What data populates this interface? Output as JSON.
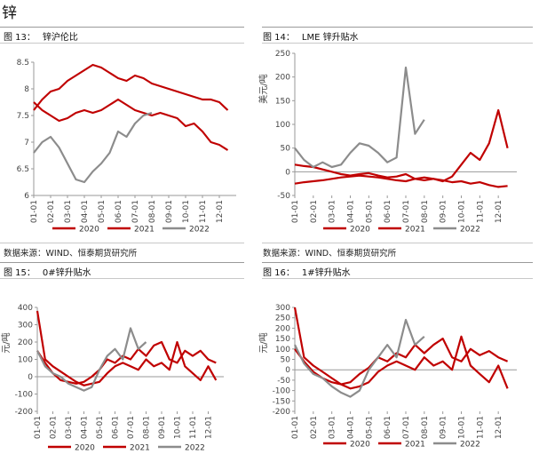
{
  "page": {
    "title": "锌"
  },
  "panels": [
    {
      "id": "fig13",
      "label_no": "图 13：",
      "label_title": "锌沪伦比",
      "source": ""
    },
    {
      "id": "fig14",
      "label_no": "图 14：",
      "label_title": "LME 锌升贴水",
      "source": "数据来源：WIND、恒泰期货研究所"
    },
    {
      "id": "fig15",
      "label_no": "图 15：",
      "label_title": "0#锌升贴水",
      "source": ""
    },
    {
      "id": "fig16",
      "label_no": "图 16：",
      "label_title": "1#锌升贴水",
      "source": ""
    }
  ],
  "source_left": "数据来源：WIND、恒泰期货研究所",
  "source_right": "数据来源：WIND、恒泰期货研究所",
  "colors": {
    "s2020": "#c00000",
    "s2021": "#c00000",
    "s2022": "#8c8c8c",
    "axis": "#999999"
  },
  "chart_data": [
    {
      "type": "line",
      "title": "锌沪伦比",
      "categories": [
        "01-01",
        "02-01",
        "03-01",
        "04-01",
        "05-01",
        "06-01",
        "07-01",
        "08-01",
        "09-01",
        "10-01",
        "11-01",
        "12-01"
      ],
      "ylim": [
        6,
        8.5
      ],
      "yticks": [
        "6",
        "6.5",
        "7",
        "7.5",
        "8",
        "8.5"
      ],
      "ylabel": "",
      "series": [
        {
          "name": "2020",
          "color": "#c00000",
          "width": 2.2,
          "x": [
            0,
            0.5,
            1,
            1.5,
            2,
            2.5,
            3,
            3.5,
            4,
            4.5,
            5,
            5.5,
            6,
            6.5,
            7,
            7.5,
            8,
            8.5,
            9,
            9.5,
            10,
            10.5,
            11,
            11.5
          ],
          "values": [
            7.75,
            7.6,
            7.5,
            7.4,
            7.45,
            7.55,
            7.6,
            7.55,
            7.6,
            7.7,
            7.8,
            7.7,
            7.6,
            7.55,
            7.5,
            7.55,
            7.5,
            7.45,
            7.3,
            7.35,
            7.2,
            7.0,
            6.95,
            6.85
          ]
        },
        {
          "name": "2021",
          "color": "#c00000",
          "width": 2.2,
          "x": [
            0,
            0.5,
            1,
            1.5,
            2,
            2.5,
            3,
            3.5,
            4,
            4.5,
            5,
            5.5,
            6,
            6.5,
            7,
            7.5,
            8,
            8.5,
            9,
            9.5,
            10,
            10.5,
            11,
            11.5
          ],
          "values": [
            7.6,
            7.8,
            7.95,
            8.0,
            8.15,
            8.25,
            8.35,
            8.45,
            8.4,
            8.3,
            8.2,
            8.15,
            8.25,
            8.2,
            8.1,
            8.05,
            8.0,
            7.95,
            7.9,
            7.85,
            7.8,
            7.8,
            7.75,
            7.6
          ]
        },
        {
          "name": "2022",
          "color": "#8c8c8c",
          "width": 2.2,
          "x": [
            0,
            0.5,
            1,
            1.5,
            2,
            2.5,
            3,
            3.5,
            4,
            4.5,
            5,
            5.5,
            6,
            6.5,
            7
          ],
          "values": [
            6.8,
            7.0,
            7.1,
            6.9,
            6.6,
            6.3,
            6.25,
            6.45,
            6.6,
            6.8,
            7.2,
            7.1,
            7.35,
            7.5,
            7.55
          ]
        }
      ]
    },
    {
      "type": "line",
      "title": "LME 锌升贴水",
      "categories": [
        "01-01",
        "02-01",
        "03-01",
        "04-01",
        "05-01",
        "06-01",
        "07-01",
        "08-01",
        "09-01",
        "10-01",
        "11-01",
        "12-01"
      ],
      "ylim": [
        -50,
        250
      ],
      "yticks": [
        "-50",
        "0",
        "50",
        "100",
        "150",
        "200",
        "250"
      ],
      "ylabel": "美元/吨",
      "series": [
        {
          "name": "2020",
          "color": "#c00000",
          "width": 2.2,
          "x": [
            0,
            0.5,
            1,
            1.5,
            2,
            2.5,
            3,
            3.5,
            4,
            4.5,
            5,
            5.5,
            6,
            6.5,
            7,
            7.5,
            8,
            8.5,
            9,
            9.5,
            10,
            10.5,
            11,
            11.5
          ],
          "values": [
            -25,
            -22,
            -20,
            -18,
            -15,
            -12,
            -10,
            -8,
            -10,
            -12,
            -15,
            -18,
            -20,
            -15,
            -12,
            -15,
            -18,
            -22,
            -20,
            -25,
            -22,
            -28,
            -32,
            -30
          ]
        },
        {
          "name": "2021",
          "color": "#c00000",
          "width": 2.2,
          "x": [
            0,
            0.5,
            1,
            1.5,
            2,
            2.5,
            3,
            3.5,
            4,
            4.5,
            5,
            5.5,
            6,
            6.5,
            7,
            7.5,
            8,
            8.5,
            9,
            9.5,
            10,
            10.5,
            11,
            11.5
          ],
          "values": [
            15,
            12,
            10,
            5,
            0,
            -5,
            -8,
            -5,
            -3,
            -8,
            -12,
            -10,
            -5,
            -15,
            -18,
            -15,
            -20,
            -10,
            15,
            40,
            25,
            60,
            130,
            50
          ]
        },
        {
          "name": "2022",
          "color": "#8c8c8c",
          "width": 2.2,
          "x": [
            0,
            0.5,
            1,
            1.5,
            2,
            2.5,
            3,
            3.5,
            4,
            4.5,
            5,
            5.5,
            6,
            6.5,
            7
          ],
          "values": [
            50,
            25,
            10,
            20,
            10,
            15,
            40,
            60,
            55,
            40,
            20,
            30,
            220,
            80,
            110
          ]
        }
      ]
    },
    {
      "type": "line",
      "title": "0#锌升贴水",
      "categories": [
        "01-01",
        "02-01",
        "03-01",
        "04-01",
        "05-01",
        "06-01",
        "07-01",
        "08-01",
        "09-01",
        "10-01",
        "11-01",
        "12-01"
      ],
      "ylim": [
        -200,
        400
      ],
      "yticks": [
        "-200",
        "-100",
        "0",
        "100",
        "200",
        "300",
        "400"
      ],
      "ylabel": "元/吨",
      "series": [
        {
          "name": "2020",
          "color": "#c00000",
          "width": 2.2,
          "x": [
            0,
            0.5,
            1,
            1.5,
            2,
            2.5,
            3,
            3.5,
            4,
            4.5,
            5,
            5.5,
            6,
            6.5,
            7,
            7.5,
            8,
            8.5,
            9,
            9.5,
            10,
            10.5,
            11,
            11.5
          ],
          "values": [
            150,
            80,
            20,
            -20,
            -30,
            -40,
            -30,
            0,
            40,
            100,
            80,
            120,
            100,
            160,
            120,
            180,
            200,
            100,
            80,
            150,
            120,
            150,
            100,
            80
          ]
        },
        {
          "name": "2021",
          "color": "#c00000",
          "width": 2.2,
          "x": [
            0,
            0.5,
            1,
            1.5,
            2,
            2.5,
            3,
            3.5,
            4,
            4.5,
            5,
            5.5,
            6,
            6.5,
            7,
            7.5,
            8,
            8.5,
            9,
            9.5,
            10,
            10.5,
            11,
            11.5
          ],
          "values": [
            380,
            100,
            60,
            30,
            0,
            -30,
            -50,
            -40,
            -30,
            20,
            60,
            80,
            60,
            40,
            100,
            60,
            80,
            40,
            200,
            60,
            20,
            -20,
            60,
            -20
          ]
        },
        {
          "name": "2022",
          "color": "#8c8c8c",
          "width": 2.2,
          "x": [
            0,
            0.5,
            1,
            1.5,
            2,
            2.5,
            3,
            3.5,
            4,
            4.5,
            5,
            5.5,
            6,
            6.5,
            7
          ],
          "values": [
            150,
            60,
            20,
            0,
            -40,
            -60,
            -80,
            -60,
            40,
            120,
            160,
            100,
            280,
            160,
            200
          ]
        }
      ]
    },
    {
      "type": "line",
      "title": "1#锌升贴水",
      "categories": [
        "01-01",
        "02-01",
        "03-01",
        "04-01",
        "05-01",
        "06-01",
        "07-01",
        "08-01",
        "09-01",
        "10-01",
        "11-01",
        "12-01"
      ],
      "ylim": [
        -200,
        300
      ],
      "yticks": [
        "-200",
        "-150",
        "-100",
        "-50",
        "0",
        "50",
        "100",
        "150",
        "200",
        "250",
        "300"
      ],
      "ylabel": "元/吨",
      "series": [
        {
          "name": "2020",
          "color": "#c00000",
          "width": 2.2,
          "x": [
            0,
            0.5,
            1,
            1.5,
            2,
            2.5,
            3,
            3.5,
            4,
            4.5,
            5,
            5.5,
            6,
            6.5,
            7,
            7.5,
            8,
            8.5,
            9,
            9.5,
            10,
            10.5,
            11,
            11.5
          ],
          "values": [
            100,
            40,
            -10,
            -40,
            -60,
            -70,
            -60,
            -20,
            10,
            60,
            40,
            80,
            60,
            120,
            80,
            120,
            150,
            60,
            40,
            100,
            70,
            90,
            60,
            40
          ]
        },
        {
          "name": "2021",
          "color": "#c00000",
          "width": 2.2,
          "x": [
            0,
            0.5,
            1,
            1.5,
            2,
            2.5,
            3,
            3.5,
            4,
            4.5,
            5,
            5.5,
            6,
            6.5,
            7,
            7.5,
            8,
            8.5,
            9,
            9.5,
            10,
            10.5,
            11,
            11.5
          ],
          "values": [
            300,
            60,
            20,
            -10,
            -40,
            -70,
            -90,
            -80,
            -60,
            -10,
            20,
            40,
            20,
            0,
            60,
            20,
            40,
            0,
            160,
            20,
            -20,
            -60,
            20,
            -90
          ]
        },
        {
          "name": "2022",
          "color": "#8c8c8c",
          "width": 2.2,
          "x": [
            0,
            0.5,
            1,
            1.5,
            2,
            2.5,
            3,
            3.5,
            4,
            4.5,
            5,
            5.5,
            6,
            6.5,
            7
          ],
          "values": [
            120,
            30,
            -20,
            -40,
            -80,
            -110,
            -130,
            -100,
            0,
            60,
            120,
            60,
            240,
            120,
            160
          ]
        }
      ]
    }
  ]
}
